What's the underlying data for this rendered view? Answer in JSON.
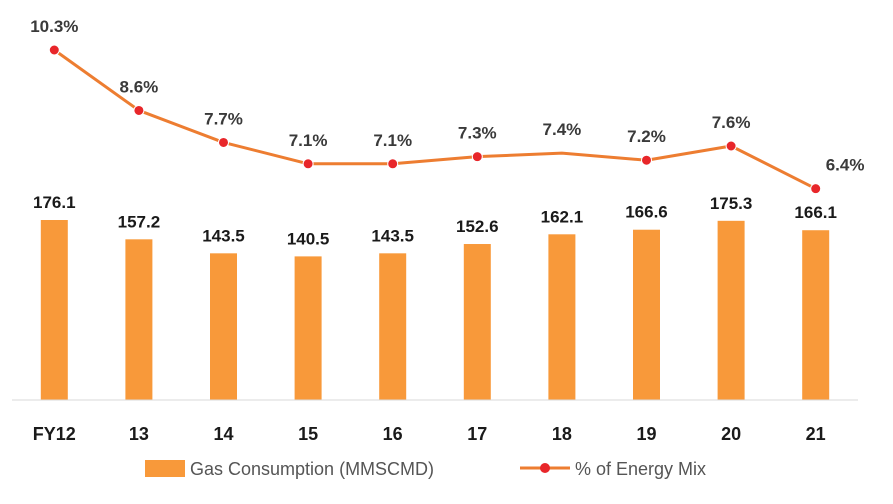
{
  "chart_data": {
    "type": "bar",
    "categories": [
      "FY12",
      "13",
      "14",
      "15",
      "16",
      "17",
      "18",
      "19",
      "20",
      "21"
    ],
    "series": [
      {
        "name": "Gas Consumption (MMSCMD)",
        "type": "bar",
        "axis": "left",
        "values": [
          176.1,
          157.2,
          143.5,
          140.5,
          143.5,
          152.6,
          162.1,
          166.6,
          175.3,
          166.1
        ],
        "labels": [
          "176.1",
          "157.2",
          "143.5",
          "140.5",
          "143.5",
          "152.6",
          "162.1",
          "166.6",
          "175.3",
          "166.1"
        ],
        "color": "#F8993A"
      },
      {
        "name": "% of Energy Mix",
        "type": "line",
        "axis": "right",
        "values": [
          10.3,
          8.6,
          7.7,
          7.1,
          7.1,
          7.3,
          7.4,
          7.2,
          7.6,
          6.4
        ],
        "labels": [
          "10.3%",
          "8.6%",
          "7.7%",
          "7.1%",
          "7.1%",
          "7.3%",
          "7.4%",
          "7.2%",
          "7.6%",
          "6.4%"
        ],
        "label_hidden_index": 6,
        "color": "#ED7D31",
        "marker_color": "#E8262A"
      }
    ],
    "title": "",
    "xlabel": "",
    "ylabel": "",
    "ylim": [
      0,
      176.1
    ],
    "y2lim": [
      4.9,
      10.3
    ],
    "grid": false,
    "legend": "bottom"
  }
}
